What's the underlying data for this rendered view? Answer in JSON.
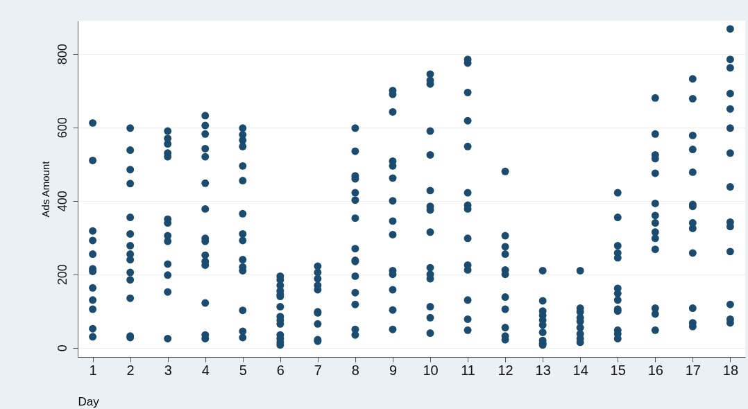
{
  "chart_data": {
    "type": "scatter",
    "xlabel": "Day",
    "ylabel": "Ads Amount",
    "xlim": [
      0.6,
      18.4
    ],
    "xticks": [
      1,
      2,
      3,
      4,
      5,
      6,
      7,
      8,
      9,
      10,
      11,
      12,
      13,
      14,
      15,
      16,
      17,
      18
    ],
    "ylim": [
      -25,
      890
    ],
    "yticks": [
      0,
      200,
      400,
      600,
      800
    ],
    "grid": "y",
    "marker": "circle",
    "series": [
      {
        "color": "#1b4b6e",
        "x": [
          1,
          1,
          1,
          1,
          1,
          1,
          1,
          1,
          1,
          1,
          1,
          1,
          2,
          2,
          2,
          2,
          2,
          2,
          2,
          2,
          2,
          2,
          2,
          2,
          2,
          2,
          3,
          3,
          3,
          3,
          3,
          3,
          3,
          3,
          3,
          3,
          3,
          3,
          3,
          4,
          4,
          4,
          4,
          4,
          4,
          4,
          4,
          4,
          4,
          4,
          4,
          4,
          4,
          4,
          5,
          5,
          5,
          5,
          5,
          5,
          5,
          5,
          5,
          5,
          5,
          5,
          5,
          5,
          5,
          6,
          6,
          6,
          6,
          6,
          6,
          6,
          6,
          6,
          6,
          6,
          6,
          6,
          6,
          7,
          7,
          7,
          7,
          7,
          7,
          7,
          7,
          7,
          7,
          8,
          8,
          8,
          8,
          8,
          8,
          8,
          8,
          8,
          8,
          8,
          8,
          8,
          8,
          8,
          9,
          9,
          9,
          9,
          9,
          9,
          9,
          9,
          9,
          9,
          9,
          9,
          9,
          9,
          10,
          10,
          10,
          10,
          10,
          10,
          10,
          10,
          10,
          10,
          10,
          10,
          10,
          10,
          10,
          11,
          11,
          11,
          11,
          11,
          11,
          11,
          11,
          11,
          11,
          11,
          11,
          11,
          11,
          12,
          12,
          12,
          12,
          12,
          12,
          12,
          12,
          12,
          12,
          12,
          13,
          13,
          13,
          13,
          13,
          13,
          13,
          13,
          13,
          13,
          14,
          14,
          14,
          14,
          14,
          14,
          14,
          14,
          14,
          15,
          15,
          15,
          15,
          15,
          15,
          15,
          15,
          15,
          15,
          15,
          15,
          15,
          16,
          16,
          16,
          16,
          16,
          16,
          16,
          16,
          16,
          16,
          16,
          16,
          16,
          16,
          17,
          17,
          17,
          17,
          17,
          17,
          17,
          17,
          17,
          17,
          17,
          17,
          17,
          18,
          18,
          18,
          18,
          18,
          18,
          18,
          18,
          18,
          18,
          18,
          18,
          18,
          18
        ],
        "values": [
          612,
          510,
          318,
          292,
          255,
          215,
          208,
          163,
          130,
          105,
          52,
          30,
          598,
          538,
          485,
          447,
          355,
          310,
          278,
          255,
          240,
          205,
          185,
          135,
          32,
          28,
          590,
          570,
          555,
          530,
          520,
          350,
          340,
          305,
          290,
          228,
          198,
          152,
          25,
          632,
          605,
          582,
          542,
          520,
          448,
          378,
          298,
          290,
          252,
          235,
          225,
          122,
          35,
          25,
          598,
          580,
          565,
          548,
          495,
          455,
          365,
          310,
          292,
          240,
          220,
          210,
          102,
          45,
          28,
          195,
          185,
          170,
          155,
          145,
          140,
          112,
          85,
          75,
          65,
          35,
          25,
          15,
          8,
          222,
          205,
          188,
          170,
          158,
          98,
          95,
          65,
          22,
          18,
          598,
          535,
          468,
          460,
          422,
          402,
          353,
          270,
          238,
          235,
          195,
          150,
          118,
          50,
          35,
          700,
          690,
          642,
          508,
          495,
          462,
          400,
          345,
          308,
          210,
          200,
          158,
          103,
          50,
          745,
          728,
          718,
          590,
          525,
          428,
          385,
          375,
          315,
          218,
          200,
          188,
          112,
          82,
          40,
          785,
          775,
          695,
          618,
          548,
          422,
          388,
          378,
          298,
          225,
          212,
          130,
          78,
          48,
          480,
          305,
          275,
          255,
          212,
          200,
          138,
          105,
          55,
          32,
          22,
          210,
          128,
          100,
          88,
          75,
          62,
          42,
          20,
          12,
          8,
          210,
          108,
          98,
          82,
          72,
          55,
          38,
          25,
          15,
          422,
          355,
          278,
          258,
          245,
          162,
          148,
          130,
          105,
          100,
          48,
          38,
          25,
          680,
          582,
          525,
          515,
          475,
          393,
          360,
          340,
          315,
          298,
          268,
          108,
          92,
          48,
          732,
          678,
          578,
          540,
          478,
          390,
          385,
          340,
          325,
          258,
          108,
          68,
          58,
          868,
          785,
          762,
          692,
          650,
          598,
          530,
          438,
          342,
          330,
          262,
          118,
          78,
          68
        ]
      }
    ]
  }
}
